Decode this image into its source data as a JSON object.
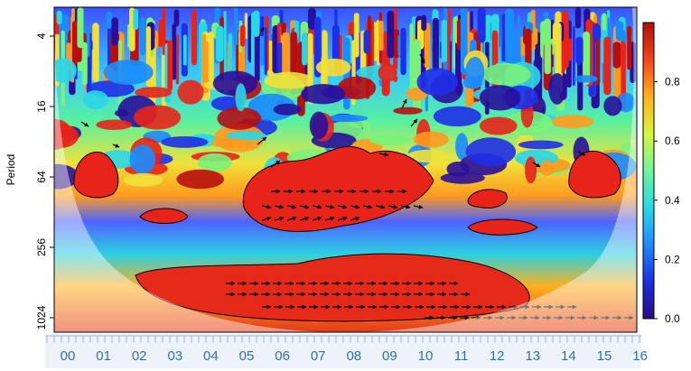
{
  "chart_data": {
    "type": "heatmap",
    "subtype": "wavelet-coherence",
    "title": "",
    "xlabel": "",
    "ylabel": "Period",
    "x_ticks": [
      "00",
      "01",
      "02",
      "03",
      "04",
      "05",
      "06",
      "07",
      "08",
      "09",
      "10",
      "11",
      "12",
      "13",
      "14",
      "15",
      "16"
    ],
    "y_ticks": [
      "4",
      "16",
      "64",
      "256",
      "1024"
    ],
    "y_scale": "log2",
    "colorbar": {
      "ticks": [
        "0.0",
        "0.2",
        "0.4",
        "0.6",
        "0.8"
      ],
      "range": [
        0,
        1
      ],
      "colors": [
        "#2b0a82",
        "#1a2fe0",
        "#1f8bff",
        "#27d8e8",
        "#6ff59a",
        "#d9f53a",
        "#ffb21e",
        "#f4431a",
        "#b10e0e"
      ]
    },
    "cone_of_influence": true,
    "significance_contours": true,
    "phase_arrows": true,
    "high_coherence_regions": [
      {
        "x_range": [
          "05",
          "11"
        ],
        "period_range": [
          64,
          256
        ],
        "coherence": 0.9
      },
      {
        "x_range": [
          "02",
          "13"
        ],
        "period_range": [
          400,
          1400
        ],
        "coherence": 0.9
      },
      {
        "x_range": [
          "00",
          "02"
        ],
        "period_range": [
          40,
          90
        ],
        "coherence": 0.85
      },
      {
        "x_range": [
          "11",
          "13"
        ],
        "period_range": [
          150,
          250
        ],
        "coherence": 0.85
      },
      {
        "x_range": [
          "14",
          "16"
        ],
        "period_range": [
          30,
          90
        ],
        "coherence": 0.85
      }
    ]
  }
}
